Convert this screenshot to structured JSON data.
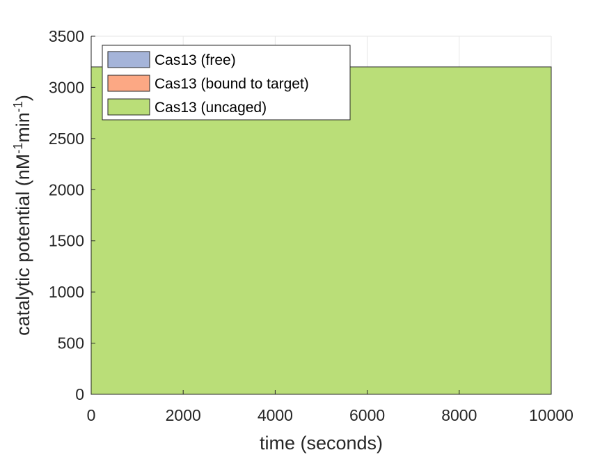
{
  "chart_data": {
    "type": "area",
    "xlabel": "time (seconds)",
    "ylabel": {
      "prefix": "catalytic potential (nM",
      "sup1": "-1",
      "middle": "min",
      "sup2": "-1",
      "suffix": ")"
    },
    "xlim": [
      0,
      10000
    ],
    "ylim": [
      0,
      3500
    ],
    "xticks": [
      0,
      2000,
      4000,
      6000,
      8000,
      10000
    ],
    "yticks": [
      0,
      500,
      1000,
      1500,
      2000,
      2500,
      3000,
      3500
    ],
    "grid": true,
    "stacked": true,
    "legend_position": "top-left",
    "x": [
      0,
      10000
    ],
    "series": [
      {
        "name": "Cas13 (free)",
        "color": "#a5b4d9",
        "values": [
          0,
          0
        ]
      },
      {
        "name": "Cas13 (bound to target)",
        "color": "#fca884",
        "values": [
          0,
          0
        ]
      },
      {
        "name": "Cas13 (uncaged)",
        "color": "#bade78",
        "values": [
          3200,
          3200
        ]
      }
    ]
  }
}
